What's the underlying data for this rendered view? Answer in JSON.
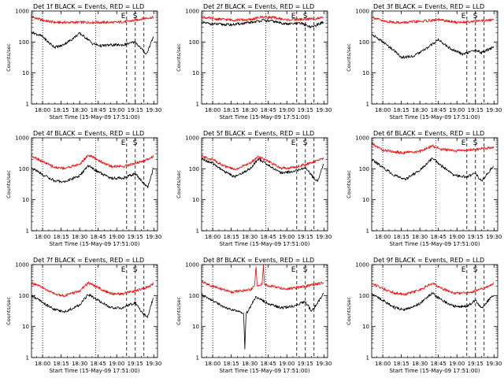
{
  "colors": {
    "events": "#000000",
    "lld": "#ff0000",
    "background": "#ffffff"
  },
  "chart_data": [
    {
      "type": "line",
      "title": "Det 1f BLACK = Events, RED = LLD",
      "xlabel": "Start Time (15-May-09 17:51:00)",
      "ylabel": "Counts/sec",
      "x_ticks": [
        "18:00",
        "18:15",
        "18:30",
        "18:45",
        "19:00",
        "19:15",
        "19:30"
      ],
      "y_ticks": [
        "1",
        "10",
        "100",
        "1000"
      ],
      "ylim": [
        1,
        1000
      ],
      "y_scale": "log",
      "markers": [
        "E",
        "S"
      ],
      "series": [
        {
          "color": "#ff0000",
          "x": [
            "17:51",
            "18:00",
            "18:10",
            "18:20",
            "18:30",
            "18:40",
            "18:50",
            "19:00",
            "19:08",
            "19:15",
            "19:20",
            "19:25",
            "19:30"
          ],
          "y": [
            650,
            500,
            430,
            430,
            430,
            430,
            430,
            430,
            460,
            500,
            560,
            600,
            620
          ]
        },
        {
          "color": "#000000",
          "x": [
            "17:51",
            "18:00",
            "18:05",
            "18:10",
            "18:15",
            "18:22",
            "18:30",
            "18:37",
            "18:40",
            "18:47",
            "18:55",
            "19:05",
            "19:15",
            "19:20",
            "19:24",
            "19:30"
          ],
          "y": [
            210,
            150,
            95,
            68,
            75,
            110,
            190,
            120,
            90,
            75,
            80,
            80,
            100,
            60,
            40,
            160
          ]
        }
      ]
    },
    {
      "type": "line",
      "title": "Det 2f BLACK = Events, RED = LLD",
      "xlabel": "Start Time (15-May-09 17:51:00)",
      "ylabel": "Counts/sec",
      "x_ticks": [
        "18:00",
        "18:15",
        "18:30",
        "18:45",
        "19:00",
        "19:15",
        "19:30"
      ],
      "y_ticks": [
        "1",
        "10",
        "100",
        "1000"
      ],
      "ylim": [
        1,
        1000
      ],
      "y_scale": "log",
      "markers": [
        "E",
        "S"
      ],
      "series": [
        {
          "color": "#ff0000",
          "x": [
            "17:51",
            "18:00",
            "18:15",
            "18:30",
            "18:40",
            "18:48",
            "19:00",
            "19:15",
            "19:30"
          ],
          "y": [
            650,
            560,
            520,
            520,
            650,
            620,
            520,
            540,
            600
          ]
        },
        {
          "color": "#000000",
          "x": [
            "17:51",
            "18:00",
            "18:15",
            "18:30",
            "18:40",
            "18:48",
            "19:00",
            "19:12",
            "19:20",
            "19:30"
          ],
          "y": [
            420,
            380,
            360,
            420,
            500,
            470,
            380,
            400,
            300,
            450
          ]
        }
      ]
    },
    {
      "type": "line",
      "title": "Det 3f BLACK = Events, RED = LLD",
      "xlabel": "Start Time (15-May-09 17:51:00)",
      "ylabel": "Counts/sec",
      "x_ticks": [
        "18:00",
        "18:15",
        "18:30",
        "18:45",
        "19:00",
        "19:15",
        "19:30"
      ],
      "y_ticks": [
        "1",
        "10",
        "100",
        "1000"
      ],
      "ylim": [
        1,
        1000
      ],
      "y_scale": "log",
      "markers": [
        "E",
        "S"
      ],
      "series": [
        {
          "color": "#ff0000",
          "x": [
            "17:51",
            "18:00",
            "18:15",
            "18:30",
            "18:45",
            "19:00",
            "19:15",
            "19:30"
          ],
          "y": [
            650,
            470,
            420,
            460,
            520,
            430,
            470,
            520
          ]
        },
        {
          "color": "#000000",
          "x": [
            "17:51",
            "18:00",
            "18:10",
            "18:15",
            "18:25",
            "18:35",
            "18:45",
            "18:55",
            "19:05",
            "19:15",
            "19:20",
            "19:30"
          ],
          "y": [
            180,
            100,
            50,
            32,
            35,
            60,
            120,
            60,
            40,
            55,
            45,
            70
          ]
        }
      ]
    },
    {
      "type": "line",
      "title": "Det 4f BLACK = Events, RED = LLD",
      "xlabel": "Start Time (15-May-09 17:51:00)",
      "ylabel": "Counts/sec",
      "x_ticks": [
        "18:00",
        "18:15",
        "18:30",
        "18:45",
        "19:00",
        "19:15",
        "19:30"
      ],
      "y_ticks": [
        "1",
        "10",
        "100",
        "1000"
      ],
      "ylim": [
        1,
        1000
      ],
      "y_scale": "log",
      "markers": [
        "E",
        "S"
      ],
      "series": [
        {
          "color": "#ff0000",
          "x": [
            "17:51",
            "18:00",
            "18:10",
            "18:18",
            "18:30",
            "18:37",
            "18:45",
            "18:55",
            "19:05",
            "19:15",
            "19:22",
            "19:30"
          ],
          "y": [
            270,
            170,
            110,
            105,
            140,
            280,
            190,
            120,
            120,
            150,
            180,
            260
          ]
        },
        {
          "color": "#000000",
          "x": [
            "17:51",
            "18:00",
            "18:10",
            "18:18",
            "18:30",
            "18:37",
            "18:45",
            "18:55",
            "19:05",
            "19:15",
            "19:20",
            "19:25",
            "19:30"
          ],
          "y": [
            110,
            65,
            40,
            38,
            60,
            125,
            80,
            50,
            50,
            70,
            40,
            25,
            110
          ]
        }
      ]
    },
    {
      "type": "line",
      "title": "Det 5f BLACK = Events, RED = LLD",
      "xlabel": "Start Time (15-May-09 17:51:00)",
      "ylabel": "Counts/sec",
      "x_ticks": [
        "18:00",
        "18:15",
        "18:30",
        "18:45",
        "19:00",
        "19:15",
        "19:30"
      ],
      "y_ticks": [
        "1",
        "10",
        "100",
        "1000"
      ],
      "ylim": [
        1,
        1000
      ],
      "y_scale": "log",
      "markers": [
        "E",
        "S"
      ],
      "series": [
        {
          "color": "#ff0000",
          "x": [
            "17:51",
            "18:00",
            "18:10",
            "18:18",
            "18:30",
            "18:37",
            "18:45",
            "18:55",
            "19:05",
            "19:15",
            "19:22",
            "19:30"
          ],
          "y": [
            250,
            200,
            120,
            95,
            150,
            250,
            170,
            105,
            110,
            140,
            170,
            220
          ]
        },
        {
          "color": "#000000",
          "x": [
            "17:51",
            "18:00",
            "18:10",
            "18:18",
            "18:30",
            "18:37",
            "18:45",
            "18:55",
            "19:05",
            "19:15",
            "19:20",
            "19:25",
            "19:30"
          ],
          "y": [
            210,
            150,
            80,
            55,
            100,
            210,
            130,
            75,
            80,
            110,
            60,
            40,
            160
          ]
        }
      ]
    },
    {
      "type": "line",
      "title": "Det 6f BLACK = Events, RED = LLD",
      "xlabel": "Start Time (15-May-09 17:51:00)",
      "ylabel": "Counts/sec",
      "x_ticks": [
        "18:00",
        "18:15",
        "18:30",
        "18:45",
        "19:00",
        "19:15",
        "19:30"
      ],
      "y_ticks": [
        "1",
        "10",
        "100",
        "1000"
      ],
      "ylim": [
        1,
        1000
      ],
      "y_scale": "log",
      "markers": [
        "E",
        "S"
      ],
      "series": [
        {
          "color": "#ff0000",
          "x": [
            "17:51",
            "18:00",
            "18:15",
            "18:30",
            "18:40",
            "18:48",
            "19:00",
            "19:15",
            "19:30"
          ],
          "y": [
            650,
            400,
            330,
            360,
            550,
            420,
            380,
            420,
            500
          ]
        },
        {
          "color": "#000000",
          "x": [
            "17:51",
            "18:00",
            "18:10",
            "18:18",
            "18:30",
            "18:40",
            "18:48",
            "18:58",
            "19:08",
            "19:15",
            "19:20",
            "19:30"
          ],
          "y": [
            200,
            110,
            60,
            45,
            90,
            220,
            120,
            60,
            55,
            70,
            40,
            130
          ]
        }
      ]
    },
    {
      "type": "line",
      "title": "Det 7f BLACK = Events, RED = LLD",
      "xlabel": "Start Time (15-May-09 17:51:00)",
      "ylabel": "Counts/sec",
      "x_ticks": [
        "18:00",
        "18:15",
        "18:30",
        "18:45",
        "19:00",
        "19:15",
        "19:30"
      ],
      "y_ticks": [
        "1",
        "10",
        "100",
        "1000"
      ],
      "ylim": [
        1,
        1000
      ],
      "y_scale": "log",
      "markers": [
        "E",
        "S"
      ],
      "series": [
        {
          "color": "#ff0000",
          "x": [
            "17:51",
            "18:00",
            "18:10",
            "18:18",
            "18:30",
            "18:37",
            "18:45",
            "18:55",
            "19:05",
            "19:15",
            "19:22",
            "19:30"
          ],
          "y": [
            250,
            180,
            110,
            100,
            140,
            260,
            180,
            115,
            115,
            140,
            170,
            240
          ]
        },
        {
          "color": "#000000",
          "x": [
            "17:51",
            "18:00",
            "18:10",
            "18:18",
            "18:30",
            "18:37",
            "18:45",
            "18:55",
            "19:05",
            "19:15",
            "19:20",
            "19:25",
            "19:30"
          ],
          "y": [
            100,
            60,
            35,
            30,
            50,
            110,
            70,
            40,
            40,
            60,
            30,
            20,
            100
          ]
        }
      ]
    },
    {
      "type": "line",
      "title": "Det 8f BLACK = Events, RED = LLD",
      "xlabel": "Start Time (15-May-09 17:51:00)",
      "ylabel": "Counts/sec",
      "x_ticks": [
        "18:00",
        "18:15",
        "18:30",
        "18:45",
        "19:00",
        "19:15",
        "19:30"
      ],
      "y_ticks": [
        "1",
        "10",
        "100",
        "1000"
      ],
      "ylim": [
        1,
        1000
      ],
      "y_scale": "log",
      "markers": [
        "E",
        "S"
      ],
      "series": [
        {
          "color": "#ff0000",
          "x": [
            "17:51",
            "18:00",
            "18:15",
            "18:30",
            "18:34",
            "18:35",
            "18:36",
            "18:40",
            "18:41",
            "18:42",
            "18:48",
            "19:00",
            "19:15",
            "19:30"
          ],
          "y": [
            280,
            200,
            130,
            150,
            200,
            1000,
            200,
            230,
            1000,
            220,
            200,
            160,
            200,
            260
          ]
        },
        {
          "color": "#000000",
          "x": [
            "17:51",
            "18:00",
            "18:10",
            "18:18",
            "18:25",
            "18:26",
            "18:27",
            "18:35",
            "18:45",
            "18:55",
            "19:05",
            "19:15",
            "19:20",
            "19:30"
          ],
          "y": [
            110,
            70,
            40,
            32,
            28,
            2,
            25,
            90,
            55,
            40,
            45,
            65,
            30,
            120
          ]
        }
      ]
    },
    {
      "type": "line",
      "title": "Det 9f BLACK = Events, RED = LLD",
      "xlabel": "Start Time (15-May-09 17:51:00)",
      "ylabel": "Counts/sec",
      "x_ticks": [
        "18:00",
        "18:15",
        "18:30",
        "18:45",
        "19:00",
        "19:15",
        "19:30"
      ],
      "y_ticks": [
        "1",
        "10",
        "100",
        "1000"
      ],
      "ylim": [
        1,
        1000
      ],
      "y_scale": "log",
      "markers": [
        "E",
        "S"
      ],
      "series": [
        {
          "color": "#ff0000",
          "x": [
            "17:51",
            "18:00",
            "18:10",
            "18:18",
            "18:30",
            "18:40",
            "18:48",
            "18:58",
            "19:08",
            "19:15",
            "19:22",
            "19:30"
          ],
          "y": [
            250,
            170,
            120,
            110,
            150,
            250,
            170,
            120,
            120,
            140,
            170,
            240
          ]
        },
        {
          "color": "#000000",
          "x": [
            "17:51",
            "18:00",
            "18:10",
            "18:18",
            "18:30",
            "18:40",
            "18:48",
            "18:58",
            "19:08",
            "19:15",
            "19:20",
            "19:30"
          ],
          "y": [
            120,
            70,
            40,
            35,
            55,
            120,
            70,
            45,
            45,
            70,
            40,
            110
          ]
        }
      ]
    }
  ]
}
